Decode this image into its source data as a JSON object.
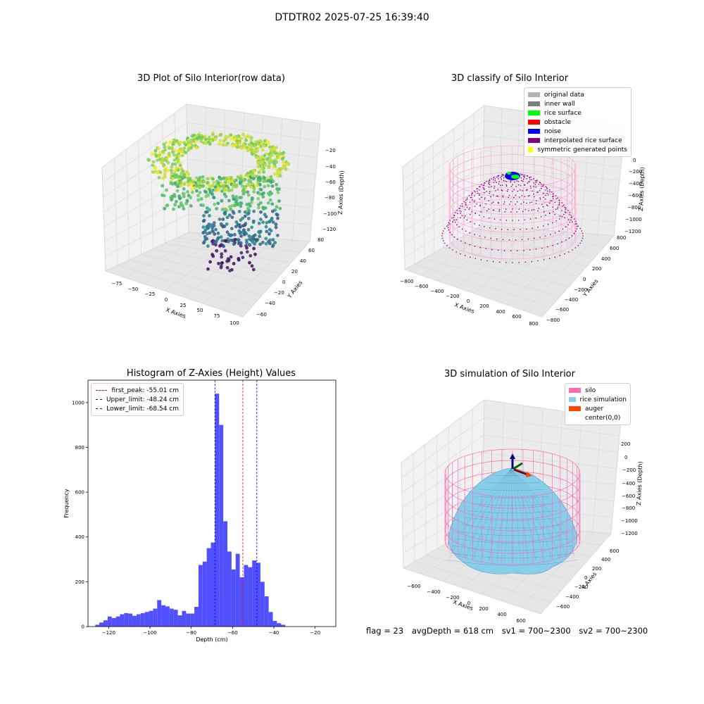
{
  "figure": {
    "suptitle": "DTDTR02 2025-07-25 16:39:40",
    "footer": {
      "flag": "flag = 23",
      "avg_depth": "avgDepth = 618 cm",
      "sv1": "sv1 = 700~2300",
      "sv2": "sv2 = 700~2300"
    }
  },
  "panels": {
    "raw": {
      "title": "3D Plot of Silo Interior(row data)",
      "xlabel": "X Axies",
      "ylabel": "Y Axies",
      "zlabel": "Z Axies (Depth)",
      "xticks": [
        "−75",
        "−50",
        "−25",
        "0",
        "25",
        "50",
        "75",
        "100"
      ],
      "yticks": [
        "−60",
        "−40",
        "−20",
        "0",
        "20",
        "40",
        "60",
        "80"
      ],
      "zticks": [
        "−20",
        "−40",
        "−60",
        "−80",
        "−100",
        "−120"
      ]
    },
    "classify": {
      "title": "3D classify of Silo Interior",
      "xlabel": "X Axies",
      "ylabel": "Y Axies",
      "zlabel": "Z Axies (Depth)",
      "xticks": [
        "−800",
        "−600",
        "−400",
        "−200",
        "0",
        "200",
        "400",
        "600",
        "800"
      ],
      "yticks": [
        "−800",
        "−600",
        "−400",
        "−200",
        "0",
        "200",
        "400",
        "600",
        "800"
      ],
      "zticks": [
        "0",
        "−200",
        "−400",
        "−600",
        "−800",
        "−1000",
        "−1200"
      ],
      "legend": [
        {
          "label": "original data",
          "color": "#b3b3b3"
        },
        {
          "label": "inner wall",
          "color": "#808080"
        },
        {
          "label": "rice surface",
          "color": "#00ff00"
        },
        {
          "label": "obstacle",
          "color": "#ff0000"
        },
        {
          "label": "noise",
          "color": "#0000ff"
        },
        {
          "label": "interpolated rice surface",
          "color": "#800080"
        },
        {
          "label": "symmetric generated points",
          "color": "#ffff00"
        }
      ]
    },
    "simulation": {
      "title": "3D simulation of Silo Interior",
      "xlabel": "X Axies",
      "ylabel": "Y Axies",
      "zlabel": "Z Axies (Depth)",
      "xticks": [
        "−600",
        "−400",
        "−200",
        "0",
        "200",
        "400",
        "600"
      ],
      "yticks": [
        "−600",
        "−400",
        "−200",
        "0",
        "200",
        "400",
        "600"
      ],
      "zticks": [
        "200",
        "0",
        "−200",
        "−400",
        "−600",
        "−800",
        "−1000",
        "−1200"
      ],
      "legend": [
        {
          "label": "silo",
          "color": "#ff69b4"
        },
        {
          "label": "rice simulation",
          "color": "#87ceeb"
        },
        {
          "label": "auger",
          "color": "#ff4500"
        },
        {
          "label": "center(0,0)",
          "color": "#ffffff"
        }
      ]
    }
  },
  "chart_data": [
    {
      "type": "bar",
      "title": "Histogram of Z-Axies (Height) Values",
      "xlabel": "Depth (cm)",
      "ylabel": "Frequency",
      "xlim": [
        -130,
        -10
      ],
      "ylim": [
        0,
        1100
      ],
      "xticks": [
        -120,
        -100,
        -80,
        -60,
        -40,
        -20
      ],
      "yticks": [
        0,
        200,
        400,
        600,
        800,
        1000
      ],
      "bar_color": "#5050ff",
      "bin_start": -126.5,
      "bin_width": 2.0,
      "values": [
        8,
        18,
        28,
        45,
        38,
        45,
        55,
        60,
        58,
        48,
        55,
        60,
        65,
        70,
        80,
        118,
        95,
        90,
        80,
        75,
        50,
        70,
        58,
        58,
        88,
        275,
        290,
        350,
        375,
        1040,
        900,
        470,
        335,
        255,
        325,
        220,
        275,
        265,
        295,
        285,
        200,
        135,
        65,
        25,
        15,
        8
      ],
      "lines": [
        {
          "label": "first_peak: -55.01 cm",
          "x": -55.01,
          "color": "#ff0000"
        },
        {
          "label": "Upper_limit: -48.24 cm",
          "x": -48.24,
          "color": "#0000ff"
        },
        {
          "label": "Lower_limit: -68.54 cm",
          "x": -68.54,
          "color": "#0000ff"
        }
      ]
    }
  ]
}
